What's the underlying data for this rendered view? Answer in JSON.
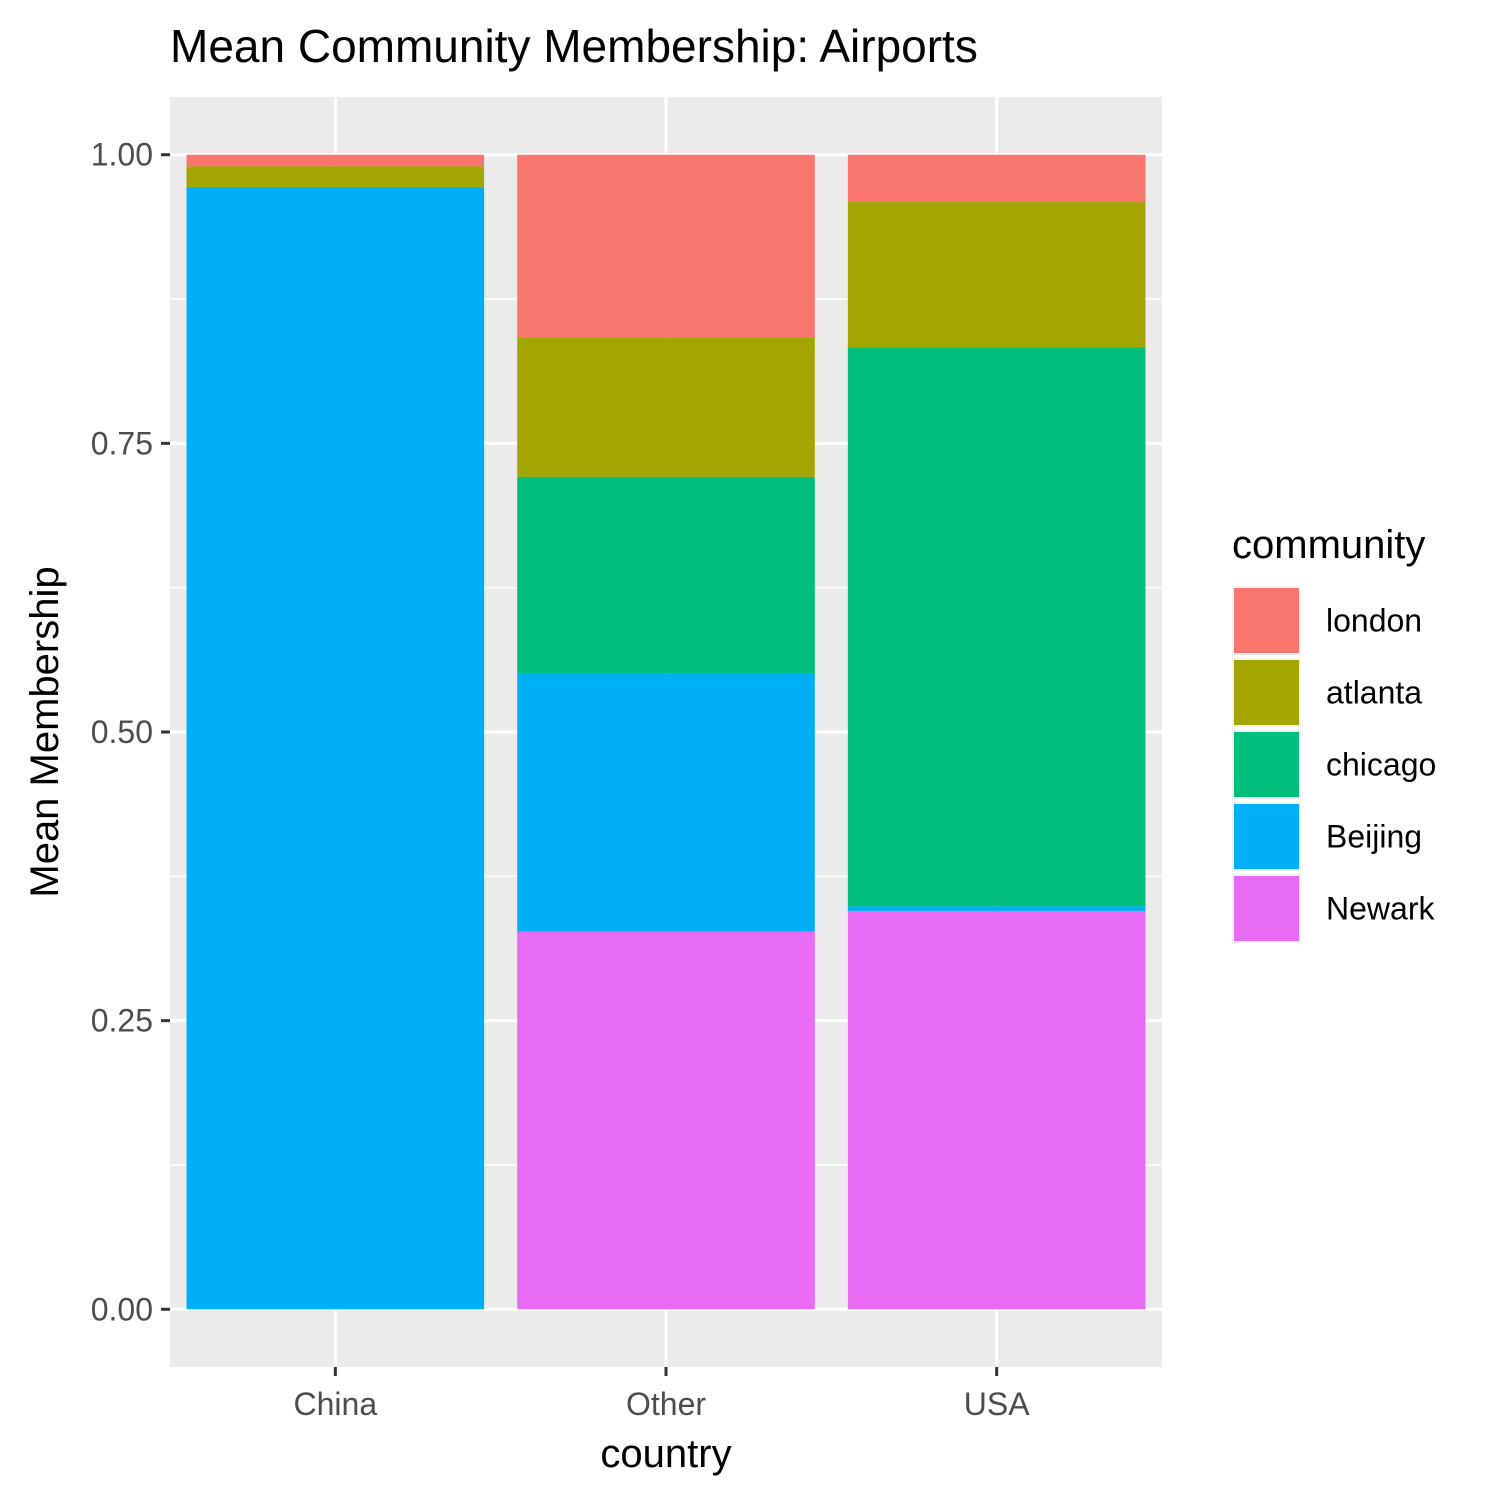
{
  "chart_data": {
    "type": "bar",
    "stacked": true,
    "title": "Mean Community Membership: Airports",
    "xlabel": "country",
    "ylabel": "Mean Membership",
    "categories": [
      "China",
      "Other",
      "USA"
    ],
    "ylim": [
      -0.05,
      1.05
    ],
    "yticks": [
      0.0,
      0.25,
      0.5,
      0.75,
      1.0
    ],
    "ytick_labels": [
      "0.00",
      "0.25",
      "0.50",
      "0.75",
      "1.00"
    ],
    "grid": true,
    "legend_title": "community",
    "legend_position": "right",
    "series": [
      {
        "name": "Newark",
        "color": "#E76BF3",
        "values": [
          0.0,
          0.327,
          0.345
        ]
      },
      {
        "name": "Beijing",
        "color": "#00B0F6",
        "values": [
          0.972,
          0.224,
          0.004
        ]
      },
      {
        "name": "chicago",
        "color": "#00BF7D",
        "values": [
          0.0,
          0.17,
          0.484
        ]
      },
      {
        "name": "atlanta",
        "color": "#A3A500",
        "values": [
          0.018,
          0.121,
          0.126
        ]
      },
      {
        "name": "london",
        "color": "#F8766D",
        "values": [
          0.01,
          0.158,
          0.041
        ]
      }
    ],
    "legend_order": [
      "london",
      "atlanta",
      "chicago",
      "Beijing",
      "Newark"
    ]
  }
}
